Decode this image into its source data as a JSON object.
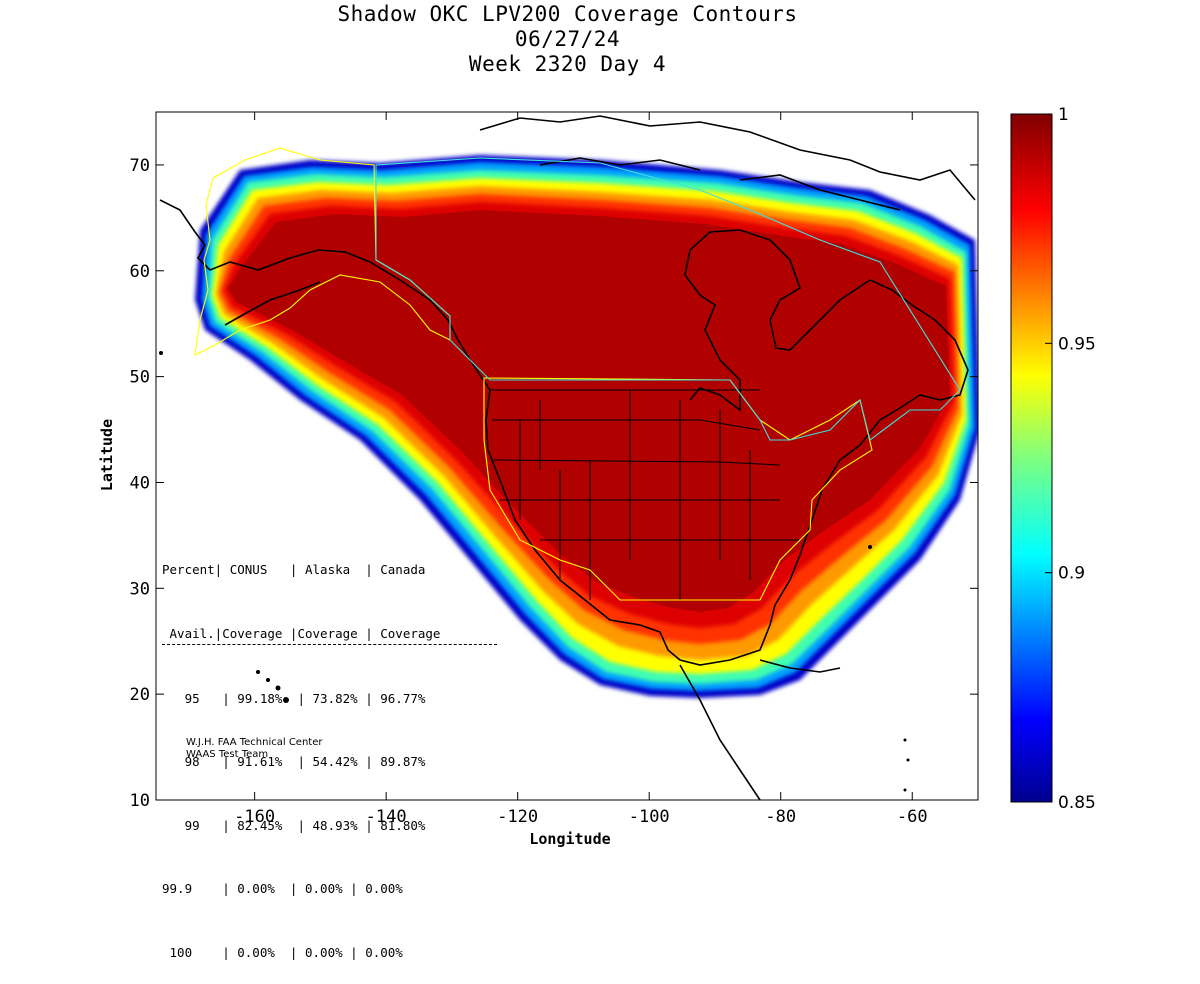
{
  "title": {
    "line1": "Shadow OKC LPV200 Coverage Contours",
    "line2": "06/27/24",
    "line3": "Week 2320 Day 4"
  },
  "axes": {
    "xlabel": "Longitude",
    "ylabel": "Latitude",
    "x_ticks": [
      "-160",
      "-140",
      "-120",
      "-100",
      "-80",
      "-60"
    ],
    "y_ticks": [
      "70",
      "60",
      "50",
      "40",
      "30",
      "20",
      "10"
    ],
    "xlim": [
      -175,
      -50
    ],
    "ylim": [
      10,
      75
    ]
  },
  "colorbar": {
    "ticks": [
      "1",
      "0.95",
      "0.9",
      "0.85"
    ],
    "range": [
      0.85,
      1
    ],
    "colormap": "jet"
  },
  "stats_table": {
    "header1": "Percent| CONUS   | Alaska  | Canada",
    "header2": " Avail.|Coverage |Coverage | Coverage",
    "rows": [
      "   95   | 99.18%  | 73.82% | 96.77%",
      "   98   | 91.61%  | 54.42% | 89.87%",
      "   99   | 82.45%  | 48.93% | 81.80%",
      "99.9    | 0.00%  | 0.00% | 0.00%",
      " 100    | 0.00%  | 0.00% | 0.00%"
    ]
  },
  "credit": {
    "line1": "W.J.H. FAA Technical Center",
    "line2": "WAAS Test Team"
  },
  "chart_data": {
    "type": "heatmap",
    "title": "Shadow OKC LPV200 Coverage Contours",
    "xlabel": "Longitude",
    "ylabel": "Latitude",
    "xlim": [
      -175,
      -50
    ],
    "ylim": [
      10,
      75
    ],
    "zlim": [
      0.85,
      1
    ],
    "coverage_levels": [
      0.85,
      0.9,
      0.95,
      0.98,
      0.99,
      0.999,
      1
    ],
    "table": {
      "columns": [
        "Percent Avail.",
        "CONUS Coverage",
        "Alaska Coverage",
        "Canada Coverage"
      ],
      "rows": [
        [
          "95",
          "99.18%",
          "73.82%",
          "96.77%"
        ],
        [
          "98",
          "91.61%",
          "54.42%",
          "89.87%"
        ],
        [
          "99",
          "82.45%",
          "48.93%",
          "81.80%"
        ],
        [
          "99.9",
          "0.00%",
          "0.00%",
          "0.00%"
        ],
        [
          "100",
          "0.00%",
          "0.00%",
          "0.00%"
        ]
      ]
    }
  }
}
